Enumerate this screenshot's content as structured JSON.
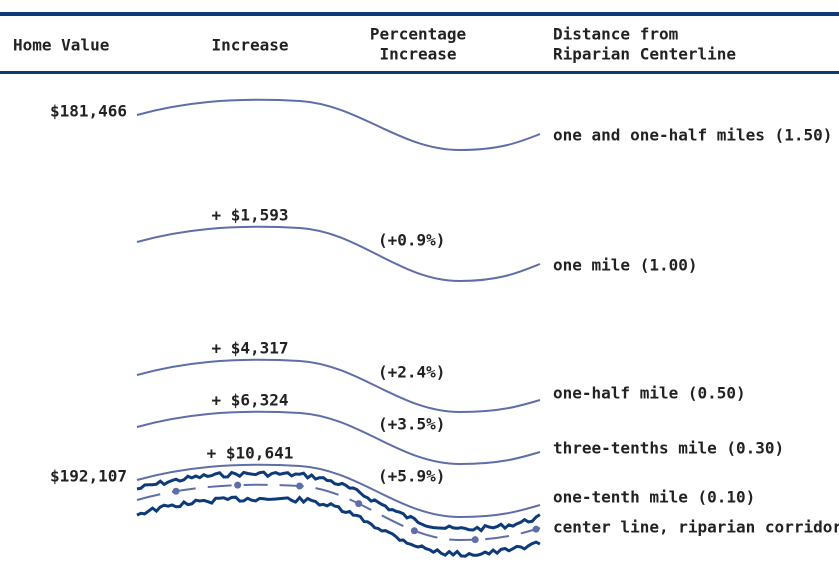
{
  "header": {
    "columns": [
      [
        "Home Value"
      ],
      [
        "Increase"
      ],
      [
        "Percentage",
        "Increase"
      ],
      [
        "Distance from",
        "Riparian Centerline"
      ]
    ]
  },
  "rows": [
    {
      "home_value": "$181,466",
      "distance": "one and one-half miles (1.50)"
    },
    {
      "increase": "+ $1,593",
      "percent": "(+0.9%)",
      "distance": "one mile (1.00)"
    },
    {
      "increase": "+ $4,317",
      "percent": "(+2.4%)",
      "distance": "one-half mile (0.50)"
    },
    {
      "increase": "+ $6,324",
      "percent": "(+3.5%)",
      "distance": "three-tenths mile (0.30)"
    },
    {
      "home_value": "$192,107",
      "increase": "+ $10,641",
      "percent": "(+5.9%)",
      "distance": "one-tenth mile (0.10)"
    }
  ],
  "center_line": "center line, riparian corridor"
}
